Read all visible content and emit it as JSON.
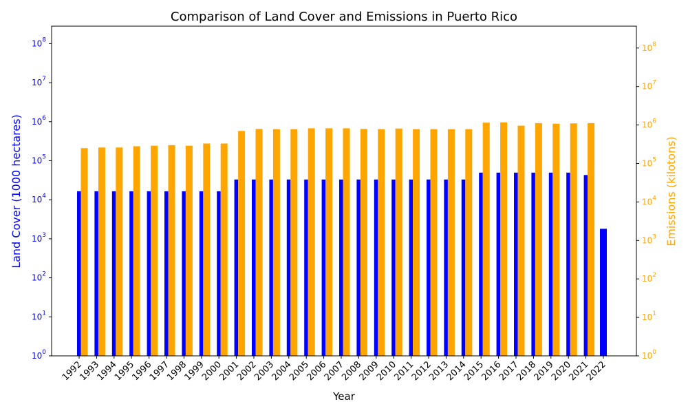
{
  "chart_data": {
    "type": "bar",
    "title": "Comparison of Land Cover and Emissions in Puerto Rico",
    "xlabel": "Year",
    "scale": "log",
    "categories": [
      "1992",
      "1993",
      "1994",
      "1995",
      "1996",
      "1997",
      "1998",
      "1999",
      "2000",
      "2001",
      "2002",
      "2003",
      "2004",
      "2005",
      "2006",
      "2007",
      "2008",
      "2009",
      "2010",
      "2011",
      "2012",
      "2013",
      "2014",
      "2015",
      "2016",
      "2017",
      "2018",
      "2019",
      "2020",
      "2021",
      "2022"
    ],
    "left_axis": {
      "label": "Land Cover (1000 hectares)",
      "color": "#0000ff",
      "ylim": [
        1,
        280000000
      ],
      "ticks": [
        {
          "value": 1,
          "base": "10",
          "exp": "0"
        },
        {
          "value": 10,
          "base": "10",
          "exp": "1"
        },
        {
          "value": 100,
          "base": "10",
          "exp": "2"
        },
        {
          "value": 1000,
          "base": "10",
          "exp": "3"
        },
        {
          "value": 10000,
          "base": "10",
          "exp": "4"
        },
        {
          "value": 100000,
          "base": "10",
          "exp": "5"
        },
        {
          "value": 1000000,
          "base": "10",
          "exp": "6"
        },
        {
          "value": 10000000,
          "base": "10",
          "exp": "7"
        },
        {
          "value": 100000000,
          "base": "10",
          "exp": "8"
        }
      ]
    },
    "right_axis": {
      "label": "Emissions (kilotons)",
      "color": "#ffa500",
      "ylim": [
        1,
        370000000
      ],
      "ticks": [
        {
          "value": 1,
          "base": "10",
          "exp": "0"
        },
        {
          "value": 10,
          "base": "10",
          "exp": "1"
        },
        {
          "value": 100,
          "base": "10",
          "exp": "2"
        },
        {
          "value": 1000,
          "base": "10",
          "exp": "3"
        },
        {
          "value": 10000,
          "base": "10",
          "exp": "4"
        },
        {
          "value": 100000,
          "base": "10",
          "exp": "5"
        },
        {
          "value": 1000000,
          "base": "10",
          "exp": "6"
        },
        {
          "value": 10000000,
          "base": "10",
          "exp": "7"
        },
        {
          "value": 100000000,
          "base": "10",
          "exp": "8"
        }
      ]
    },
    "series": [
      {
        "axis": "left",
        "color": "#0000ff",
        "values": [
          16500,
          16500,
          16500,
          16500,
          16500,
          16500,
          16500,
          16500,
          16500,
          33000,
          33000,
          33000,
          33000,
          33000,
          33000,
          33000,
          33000,
          33000,
          33000,
          33000,
          33000,
          33000,
          33000,
          49500,
          49500,
          49500,
          49500,
          49500,
          49500,
          43000,
          1800
        ]
      },
      {
        "axis": "right",
        "color": "#ffa500",
        "values": [
          250000,
          260000,
          260000,
          280000,
          290000,
          300000,
          290000,
          330000,
          330000,
          700000,
          790000,
          780000,
          780000,
          820000,
          820000,
          820000,
          790000,
          780000,
          810000,
          780000,
          780000,
          780000,
          780000,
          1150000,
          1170000,
          960000,
          1120000,
          1080000,
          1100000,
          1120000,
          null
        ]
      }
    ]
  }
}
